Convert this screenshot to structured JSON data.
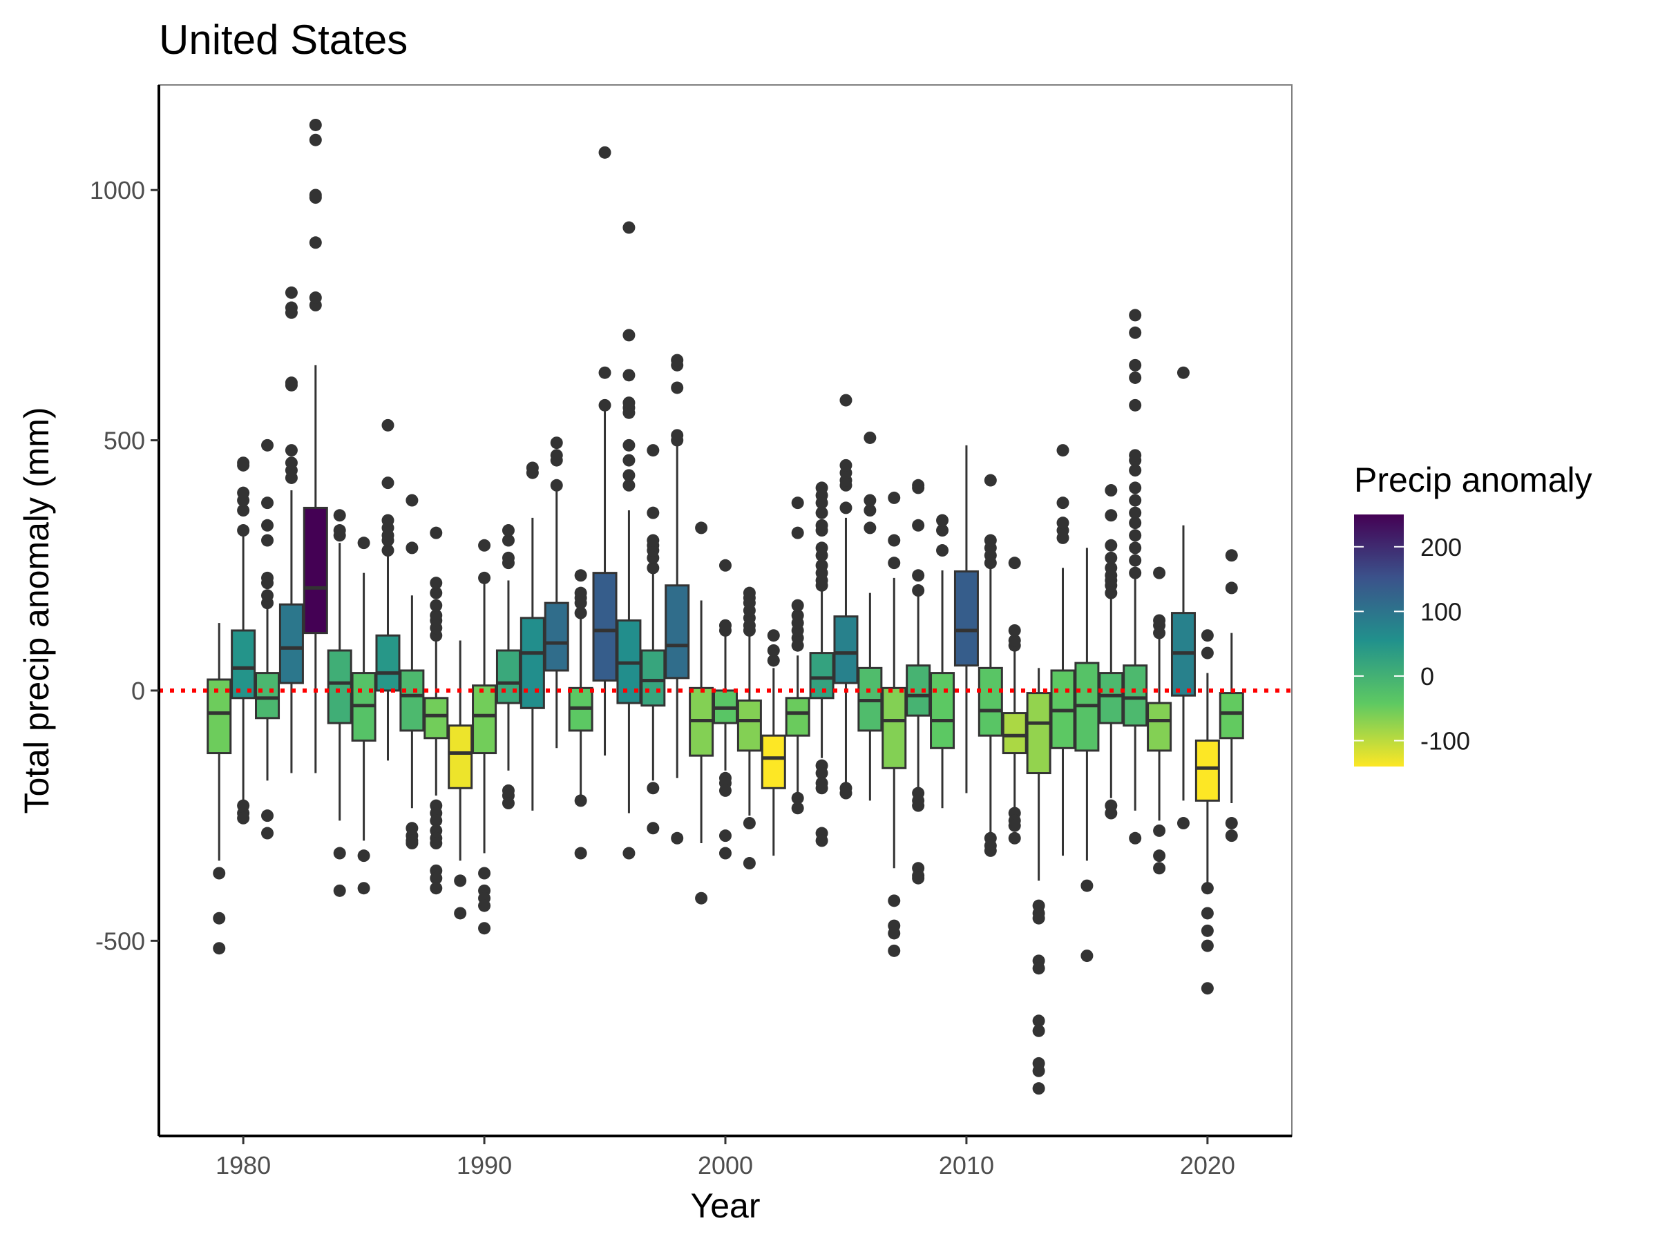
{
  "chart_data": {
    "type": "boxplot",
    "title": "United States",
    "xlabel": "Year",
    "ylabel": "Total precip anomaly (mm)",
    "xlim": [
      1976.5,
      2023.5
    ],
    "ylim": [
      -890,
      1210
    ],
    "x_ticks": [
      1980,
      1990,
      2000,
      2010,
      2020
    ],
    "y_ticks": [
      -500,
      0,
      500,
      1000
    ],
    "reference_line": {
      "y": 0,
      "color": "#ff0000",
      "style": "dotted"
    },
    "grid": false,
    "legend": {
      "title": "Precip anomaly",
      "position": "right",
      "type": "colorbar",
      "min": -140,
      "max": 250,
      "ticks": [
        -100,
        0,
        100,
        200
      ],
      "palette": [
        "#fde725",
        "#5ec962",
        "#21918c",
        "#3b528b",
        "#440154"
      ]
    },
    "boxes": [
      {
        "year": 1979,
        "q1": -125,
        "median": -45,
        "q3": 22,
        "lo": -340,
        "hi": 135,
        "mean": -52,
        "outliers": [
          -365,
          -455,
          -515
        ]
      },
      {
        "year": 1980,
        "q1": -15,
        "median": 45,
        "q3": 120,
        "lo": -225,
        "hi": 310,
        "mean": 50,
        "outliers": [
          -230,
          -245,
          -255,
          320,
          360,
          380,
          395,
          450,
          455
        ]
      },
      {
        "year": 1981,
        "q1": -55,
        "median": -15,
        "q3": 35,
        "lo": -180,
        "hi": 165,
        "mean": -12,
        "outliers": [
          -250,
          -285,
          175,
          190,
          215,
          225,
          300,
          330,
          375,
          490
        ]
      },
      {
        "year": 1982,
        "q1": 15,
        "median": 85,
        "q3": 172,
        "lo": -165,
        "hi": 400,
        "mean": 95,
        "outliers": [
          425,
          440,
          455,
          480,
          610,
          615,
          755,
          765,
          795
        ]
      },
      {
        "year": 1983,
        "q1": 115,
        "median": 205,
        "q3": 365,
        "lo": -165,
        "hi": 650,
        "mean": 250,
        "outliers": [
          770,
          785,
          895,
          985,
          990,
          1100,
          1130
        ]
      },
      {
        "year": 1984,
        "q1": -65,
        "median": 15,
        "q3": 80,
        "lo": -260,
        "hi": 295,
        "mean": 5,
        "outliers": [
          -325,
          -400,
          310,
          320,
          350
        ]
      },
      {
        "year": 1985,
        "q1": -100,
        "median": -30,
        "q3": 35,
        "lo": -300,
        "hi": 235,
        "mean": -30,
        "outliers": [
          -330,
          -395,
          295
        ]
      },
      {
        "year": 1986,
        "q1": 0,
        "median": 35,
        "q3": 110,
        "lo": -140,
        "hi": 270,
        "mean": 45,
        "outliers": [
          280,
          300,
          310,
          325,
          340,
          415,
          530
        ]
      },
      {
        "year": 1987,
        "q1": -80,
        "median": -10,
        "q3": 40,
        "lo": -235,
        "hi": 190,
        "mean": -15,
        "outliers": [
          -275,
          -290,
          -300,
          -305,
          285,
          380
        ]
      },
      {
        "year": 1988,
        "q1": -95,
        "median": -50,
        "q3": -15,
        "lo": -210,
        "hi": 100,
        "mean": -55,
        "outliers": [
          -230,
          -245,
          -260,
          -280,
          -295,
          -305,
          -360,
          -375,
          -395,
          110,
          125,
          140,
          150,
          170,
          195,
          215,
          315
        ]
      },
      {
        "year": 1989,
        "q1": -195,
        "median": -125,
        "q3": -70,
        "lo": -340,
        "hi": 100,
        "mean": -130,
        "outliers": [
          -380,
          -445
        ]
      },
      {
        "year": 1990,
        "q1": -125,
        "median": -50,
        "q3": 10,
        "lo": -325,
        "hi": 215,
        "mean": -55,
        "outliers": [
          -365,
          -400,
          -415,
          -430,
          -475,
          225,
          290
        ]
      },
      {
        "year": 1991,
        "q1": -25,
        "median": 15,
        "q3": 80,
        "lo": -160,
        "hi": 220,
        "mean": 15,
        "outliers": [
          -200,
          -210,
          -225,
          255,
          265,
          300,
          320
        ]
      },
      {
        "year": 1992,
        "q1": -35,
        "median": 75,
        "q3": 145,
        "lo": -240,
        "hi": 345,
        "mean": 60,
        "outliers": [
          435,
          445
        ]
      },
      {
        "year": 1993,
        "q1": 40,
        "median": 95,
        "q3": 175,
        "lo": -115,
        "hi": 400,
        "mean": 110,
        "outliers": [
          410,
          460,
          470,
          495
        ]
      },
      {
        "year": 1994,
        "q1": -80,
        "median": -35,
        "q3": 5,
        "lo": -210,
        "hi": 145,
        "mean": -40,
        "outliers": [
          -220,
          -325,
          155,
          175,
          185,
          195,
          230
        ]
      },
      {
        "year": 1995,
        "q1": 20,
        "median": 120,
        "q3": 235,
        "lo": -130,
        "hi": 565,
        "mean": 135,
        "outliers": [
          570,
          635,
          1075
        ]
      },
      {
        "year": 1996,
        "q1": -25,
        "median": 55,
        "q3": 140,
        "lo": -245,
        "hi": 360,
        "mean": 60,
        "outliers": [
          -325,
          410,
          430,
          460,
          490,
          555,
          565,
          575,
          630,
          710,
          925
        ]
      },
      {
        "year": 1997,
        "q1": -30,
        "median": 20,
        "q3": 80,
        "lo": -180,
        "hi": 240,
        "mean": 20,
        "outliers": [
          -195,
          -275,
          245,
          265,
          280,
          290,
          300,
          355,
          480
        ]
      },
      {
        "year": 1998,
        "q1": 25,
        "median": 90,
        "q3": 210,
        "lo": -175,
        "hi": 490,
        "mean": 110,
        "outliers": [
          -295,
          500,
          510,
          605,
          650,
          660
        ]
      },
      {
        "year": 1999,
        "q1": -130,
        "median": -60,
        "q3": 5,
        "lo": -305,
        "hi": 180,
        "mean": -65,
        "outliers": [
          -415,
          325
        ]
      },
      {
        "year": 2000,
        "q1": -65,
        "median": -35,
        "q3": 0,
        "lo": -160,
        "hi": 115,
        "mean": -35,
        "outliers": [
          -175,
          -185,
          -200,
          -290,
          -325,
          120,
          130,
          250
        ]
      },
      {
        "year": 2001,
        "q1": -120,
        "median": -60,
        "q3": -20,
        "lo": -250,
        "hi": 110,
        "mean": -65,
        "outliers": [
          -265,
          -345,
          120,
          130,
          145,
          160,
          175,
          185,
          195
        ]
      },
      {
        "year": 2002,
        "q1": -195,
        "median": -135,
        "q3": -90,
        "lo": -330,
        "hi": 45,
        "mean": -140,
        "outliers": [
          60,
          80,
          110
        ]
      },
      {
        "year": 2003,
        "q1": -90,
        "median": -45,
        "q3": -15,
        "lo": -210,
        "hi": 70,
        "mean": -50,
        "outliers": [
          -215,
          -235,
          90,
          105,
          120,
          135,
          150,
          170,
          315,
          375
        ]
      },
      {
        "year": 2004,
        "q1": -15,
        "median": 25,
        "q3": 75,
        "lo": -135,
        "hi": 200,
        "mean": 25,
        "outliers": [
          -150,
          -165,
          -185,
          -195,
          -285,
          -300,
          210,
          220,
          235,
          250,
          270,
          285,
          320,
          330,
          355,
          375,
          390,
          405
        ]
      },
      {
        "year": 2005,
        "q1": 15,
        "median": 75,
        "q3": 148,
        "lo": -190,
        "hi": 345,
        "mean": 80,
        "outliers": [
          -195,
          -205,
          365,
          410,
          420,
          435,
          450,
          580
        ]
      },
      {
        "year": 2006,
        "q1": -80,
        "median": -20,
        "q3": 45,
        "lo": -220,
        "hi": 195,
        "mean": -20,
        "outliers": [
          325,
          360,
          380,
          505
        ]
      },
      {
        "year": 2007,
        "q1": -155,
        "median": -60,
        "q3": 5,
        "lo": -355,
        "hi": 225,
        "mean": -65,
        "outliers": [
          -420,
          -470,
          -485,
          -520,
          255,
          300,
          385
        ]
      },
      {
        "year": 2008,
        "q1": -50,
        "median": -10,
        "q3": 50,
        "lo": -195,
        "hi": 190,
        "mean": -5,
        "outliers": [
          -205,
          -220,
          -230,
          -355,
          -370,
          -375,
          200,
          230,
          330,
          405,
          410
        ]
      },
      {
        "year": 2009,
        "q1": -115,
        "median": -60,
        "q3": 35,
        "lo": -235,
        "hi": 240,
        "mean": -40,
        "outliers": [
          280,
          320,
          340
        ]
      },
      {
        "year": 2010,
        "q1": 50,
        "median": 120,
        "q3": 238,
        "lo": -205,
        "hi": 490,
        "mean": 135,
        "outliers": []
      },
      {
        "year": 2011,
        "q1": -90,
        "median": -40,
        "q3": 45,
        "lo": -290,
        "hi": 250,
        "mean": -35,
        "outliers": [
          -295,
          -310,
          -320,
          255,
          270,
          285,
          300,
          420
        ]
      },
      {
        "year": 2012,
        "q1": -125,
        "median": -90,
        "q3": -45,
        "lo": -240,
        "hi": 80,
        "mean": -90,
        "outliers": [
          -245,
          -260,
          -270,
          -295,
          90,
          100,
          120,
          255
        ]
      },
      {
        "year": 2013,
        "q1": -165,
        "median": -65,
        "q3": -5,
        "lo": -380,
        "hi": 45,
        "mean": -75,
        "outliers": [
          -430,
          -445,
          -455,
          -540,
          -555,
          -660,
          -680,
          -745,
          -760,
          -795
        ]
      },
      {
        "year": 2014,
        "q1": -115,
        "median": -40,
        "q3": 40,
        "lo": -330,
        "hi": 245,
        "mean": -40,
        "outliers": [
          305,
          320,
          335,
          375,
          480
        ]
      },
      {
        "year": 2015,
        "q1": -120,
        "median": -30,
        "q3": 55,
        "lo": -340,
        "hi": 285,
        "mean": -30,
        "outliers": [
          -390,
          -530
        ]
      },
      {
        "year": 2016,
        "q1": -65,
        "median": -10,
        "q3": 35,
        "lo": -215,
        "hi": 185,
        "mean": -15,
        "outliers": [
          -230,
          -245,
          195,
          210,
          220,
          230,
          245,
          265,
          290,
          350,
          400
        ]
      },
      {
        "year": 2017,
        "q1": -70,
        "median": -15,
        "q3": 50,
        "lo": -240,
        "hi": 225,
        "mean": -15,
        "outliers": [
          -295,
          235,
          260,
          285,
          310,
          335,
          355,
          380,
          405,
          440,
          460,
          470,
          570,
          625,
          650,
          715,
          750
        ]
      },
      {
        "year": 2018,
        "q1": -120,
        "median": -60,
        "q3": -25,
        "lo": -260,
        "hi": 110,
        "mean": -65,
        "outliers": [
          -280,
          -330,
          -355,
          115,
          130,
          140,
          235
        ]
      },
      {
        "year": 2019,
        "q1": -10,
        "median": 75,
        "q3": 155,
        "lo": -220,
        "hi": 330,
        "mean": 80,
        "outliers": [
          -265,
          635
        ]
      },
      {
        "year": 2020,
        "q1": -220,
        "median": -155,
        "q3": -100,
        "lo": -390,
        "hi": 35,
        "mean": -160,
        "outliers": [
          -395,
          -445,
          -480,
          -510,
          -595,
          75,
          110
        ]
      },
      {
        "year": 2021,
        "q1": -95,
        "median": -45,
        "q3": -5,
        "lo": -225,
        "hi": 115,
        "mean": -45,
        "outliers": [
          -265,
          -290,
          205,
          270
        ]
      }
    ]
  }
}
